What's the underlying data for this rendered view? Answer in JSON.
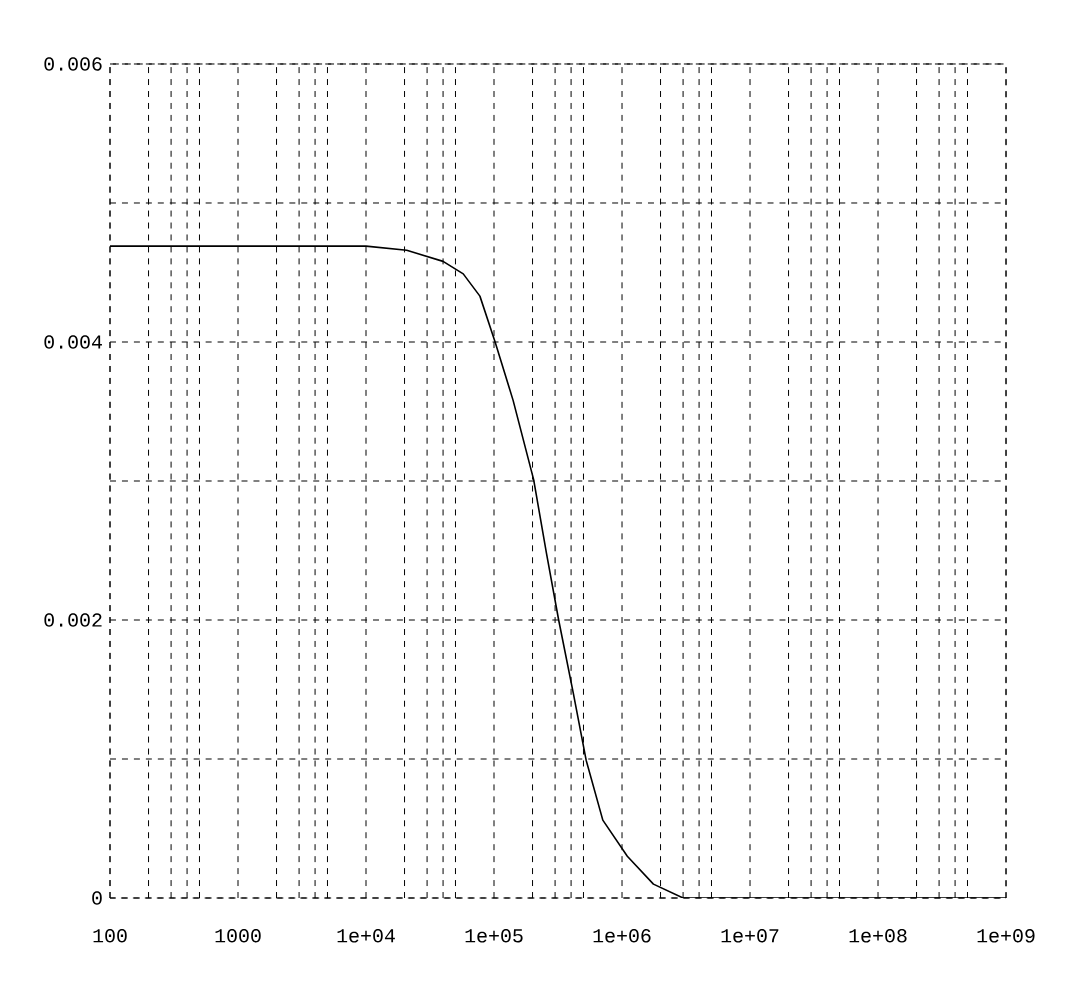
{
  "chart_data": {
    "type": "line",
    "log": "x",
    "grid": true,
    "color": "#000000",
    "x": [
      100,
      3000,
      10000,
      20800,
      40000,
      57500,
      77600,
      102000,
      141000,
      204000,
      257000,
      320000,
      417000,
      525000,
      708000,
      1100000,
      1760000,
      3000000,
      1000000000
    ],
    "values": [
      0.00469,
      0.00469,
      0.00469,
      0.00466,
      0.00458,
      0.00449,
      0.00433,
      0.004,
      0.00358,
      0.00301,
      0.00248,
      0.002,
      0.00147,
      0.00099,
      0.00056,
      0.0003,
      0.0001,
      0,
      0
    ],
    "xlim": [
      100,
      1000000000
    ],
    "xticks": [
      100,
      {
        "value": 200,
        "label": null
      },
      {
        "value": 300,
        "label": null
      },
      {
        "value": 400,
        "label": null
      },
      {
        "value": 500,
        "label": null
      },
      1000,
      {
        "value": 2000,
        "label": null
      },
      {
        "value": 3000,
        "label": null
      },
      {
        "value": 4000,
        "label": null
      },
      {
        "value": 5000,
        "label": null
      },
      {
        "value": 10000,
        "label": "1e+04"
      },
      {
        "value": 20000,
        "label": null
      },
      {
        "value": 30000,
        "label": null
      },
      {
        "value": 40000,
        "label": null
      },
      {
        "value": 50000,
        "label": null
      },
      {
        "value": 100000,
        "label": "1e+05"
      },
      {
        "value": 200000,
        "label": null
      },
      {
        "value": 300000,
        "label": null
      },
      {
        "value": 400000,
        "label": null
      },
      {
        "value": 500000,
        "label": null
      },
      {
        "value": 1000000,
        "label": "1e+06"
      },
      {
        "value": 2000000,
        "label": null
      },
      {
        "value": 3000000,
        "label": null
      },
      {
        "value": 4000000,
        "label": null
      },
      {
        "value": 5000000,
        "label": null
      },
      {
        "value": 10000000,
        "label": "1e+07"
      },
      {
        "value": 20000000,
        "label": null
      },
      {
        "value": 30000000,
        "label": null
      },
      {
        "value": 40000000,
        "label": null
      },
      {
        "value": 50000000,
        "label": null
      },
      {
        "value": 100000000,
        "label": "1e+08"
      },
      {
        "value": 200000000,
        "label": null
      },
      {
        "value": 300000000,
        "label": null
      },
      {
        "value": 400000000,
        "label": null
      },
      {
        "value": 500000000,
        "label": null
      },
      {
        "value": 1000000000,
        "label": "1e+09"
      }
    ],
    "ylim": [
      0,
      0.006
    ],
    "yticks": [
      0,
      {
        "value": 0.001,
        "label": null
      },
      0.002,
      {
        "value": 0.003,
        "label": null
      },
      0.004,
      {
        "value": 0.005,
        "label": null
      },
      0.006
    ]
  }
}
